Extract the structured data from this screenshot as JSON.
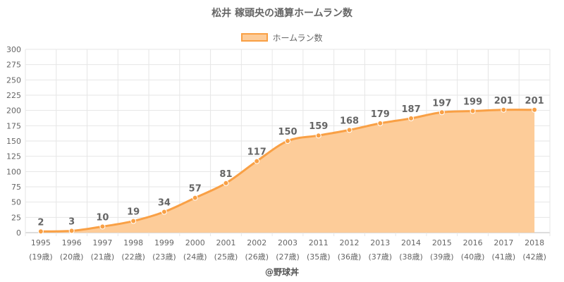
{
  "title": "松井 稼頭央の通算ホームラン数",
  "footer": "@野球丼",
  "chart_data": {
    "type": "area",
    "title": "松井 稼頭央の通算ホームラン数",
    "legend": {
      "entries": [
        "ホームラン数"
      ],
      "position": "top-center"
    },
    "categories": [
      "1995",
      "1996",
      "1997",
      "1998",
      "1999",
      "2000",
      "2001",
      "2002",
      "2003",
      "2011",
      "2012",
      "2013",
      "2014",
      "2015",
      "2016",
      "2017",
      "2018"
    ],
    "ages": [
      "(19歳)",
      "(20歳)",
      "(21歳)",
      "(22歳)",
      "(23歳)",
      "(24歳)",
      "(25歳)",
      "(26歳)",
      "(27歳)",
      "(35歳)",
      "(36歳)",
      "(37歳)",
      "(38歳)",
      "(39歳)",
      "(40歳)",
      "(41歳)",
      "(42歳)"
    ],
    "series": [
      {
        "name": "ホームラン数",
        "values": [
          2,
          3,
          10,
          19,
          34,
          57,
          81,
          117,
          150,
          159,
          168,
          179,
          187,
          197,
          199,
          201,
          201
        ]
      }
    ],
    "ylim": [
      0,
      300
    ],
    "yticks": [
      0,
      25,
      50,
      75,
      100,
      125,
      150,
      175,
      200,
      225,
      250,
      275,
      300
    ],
    "grid": true,
    "colors": {
      "line": "#f9a045",
      "fill": "#fdcc99",
      "point": "#f9a045",
      "label": "#666666"
    }
  }
}
